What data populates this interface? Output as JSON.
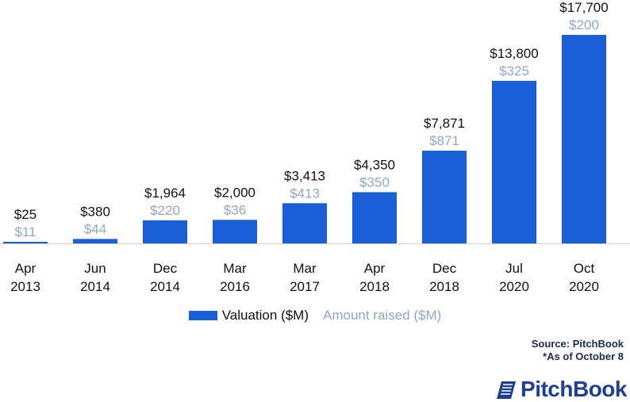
{
  "chart_data": {
    "type": "bar",
    "categories": [
      [
        "Apr",
        "2013"
      ],
      [
        "Jun",
        "2014"
      ],
      [
        "Dec",
        "2014"
      ],
      [
        "Mar",
        "2016"
      ],
      [
        "Mar",
        "2017"
      ],
      [
        "Apr",
        "2018"
      ],
      [
        "Dec",
        "2018"
      ],
      [
        "Jul",
        "2020"
      ],
      [
        "Oct",
        "2020"
      ]
    ],
    "series": [
      {
        "name": "Valuation ($M)",
        "values": [
          25,
          380,
          1964,
          2000,
          3413,
          4350,
          7871,
          13800,
          17700
        ],
        "labels": [
          "$25",
          "$380",
          "$1,964",
          "$2,000",
          "$3,413",
          "$4,350",
          "$7,871",
          "$13,800",
          "$17,700"
        ]
      },
      {
        "name": "Amount raised ($M)",
        "values": [
          11,
          44,
          220,
          36,
          413,
          350,
          871,
          325,
          200
        ],
        "labels": [
          "$11",
          "$44",
          "$220",
          "$36",
          "$413",
          "$350",
          "$871",
          "$325",
          "$200"
        ]
      }
    ],
    "ylim": [
      0,
      17700
    ],
    "grid": false,
    "legend_position": "bottom-center"
  },
  "colors": {
    "valuation": "#1b5fd6",
    "raised_text": "#8fa9bf",
    "label_text": "#111111",
    "baseline": "#d0d0d0"
  },
  "footer": {
    "source": "Source: PitchBook",
    "note": "*As of October 8",
    "brand": "PitchBook"
  }
}
